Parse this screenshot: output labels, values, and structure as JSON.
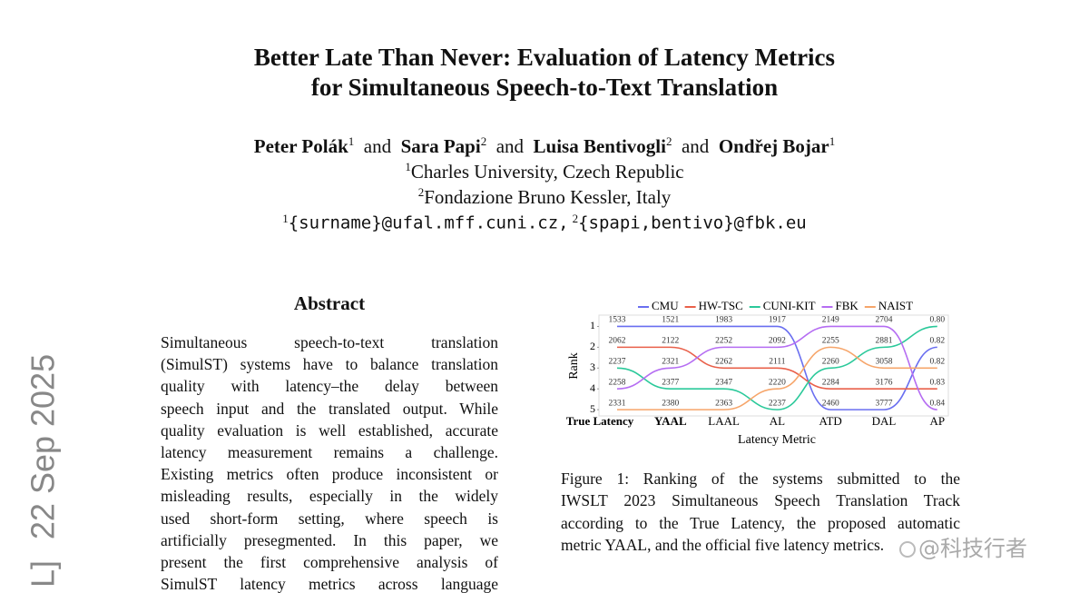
{
  "title": [
    "Better Late Than Never: Evaluation of Latency Metrics",
    "for Simultaneous Speech-to-Text Translation"
  ],
  "authors": [
    {
      "name": "Peter Polák",
      "sup": "1"
    },
    {
      "name": "Sara Papi",
      "sup": "2"
    },
    {
      "name": "Luisa Bentivogli",
      "sup": "2"
    },
    {
      "name": "Ondřej Bojar",
      "sup": "1"
    }
  ],
  "conjunction": "and",
  "affiliations": [
    {
      "sup": "1",
      "text": "Charles University, Czech Republic"
    },
    {
      "sup": "2",
      "text": "Fondazione Bruno Kessler, Italy"
    }
  ],
  "emails": [
    {
      "sup": "1",
      "text": "{surname}@ufal.mff.cuni.cz,"
    },
    {
      "sup": "2",
      "text": "{spapi,bentivo}@fbk.eu"
    }
  ],
  "stamp_fragment": "L]",
  "stamp_date": "22 Sep 2025",
  "abstract": {
    "heading": "Abstract",
    "lines": [
      "Simultaneous speech-to-text translation",
      "(SimulST) systems have to balance translation",
      "quality with latency–the delay between",
      "speech input and the translated output. While",
      "quality evaluation is well established, accurate",
      "latency measurement remains a challenge.",
      "Existing metrics often produce inconsistent or",
      "misleading results, especially in the widely",
      "used short-form setting, where speech is",
      "artificially presegmented. In this paper, we",
      "present the first comprehensive analysis of",
      "SimulST latency metrics across language"
    ]
  },
  "figure": {
    "chart": {
      "type": "line",
      "x_label": "Latency Metric",
      "y_label": "Rank",
      "categories": [
        "True Latency",
        "YAAL",
        "LAAL",
        "AL",
        "ATD",
        "DAL",
        "AP"
      ],
      "ylim": [
        5.3,
        0.5
      ],
      "yticks": [
        1,
        2,
        3,
        4,
        5
      ],
      "series": [
        {
          "name": "CMU",
          "color": "#6a6ff0",
          "values": [
            1,
            1,
            1,
            1,
            5,
            5,
            2
          ],
          "labels": [
            "1533",
            "1521",
            "1983",
            "1917",
            "2460",
            "3777",
            "0.82"
          ]
        },
        {
          "name": "HW-TSC",
          "color": "#e9604a",
          "values": [
            2,
            2,
            3,
            3,
            4,
            4,
            4
          ],
          "labels": [
            "2062",
            "2122",
            "2262",
            "2111",
            "2284",
            "3176",
            "0.83"
          ]
        },
        {
          "name": "CUNI-KIT",
          "color": "#2bc99a",
          "values": [
            3,
            4,
            4,
            5,
            3,
            2,
            1
          ],
          "labels": [
            "2237",
            "2377",
            "2347",
            "2237",
            "2260",
            "2881",
            "0.80"
          ]
        },
        {
          "name": "FBK",
          "color": "#b56df2",
          "values": [
            4,
            3,
            2,
            2,
            1,
            1,
            5
          ],
          "labels": [
            "2258",
            "2321",
            "2252",
            "2092",
            "2149",
            "2704",
            "0.84"
          ]
        },
        {
          "name": "NAIST",
          "color": "#f6a56a",
          "values": [
            5,
            5,
            5,
            4,
            2,
            3,
            3
          ],
          "labels": [
            "2331",
            "2380",
            "2363",
            "2220",
            "2255",
            "3058",
            "0.82"
          ]
        }
      ]
    },
    "caption": [
      "Figure 1: Ranking of the systems submitted to the",
      "IWSLT 2023 Simultaneous Speech Translation Track",
      "according to the True Latency, the proposed automatic",
      "metric YAAL, and the official five latency metrics."
    ]
  },
  "watermark": "@科技行者"
}
